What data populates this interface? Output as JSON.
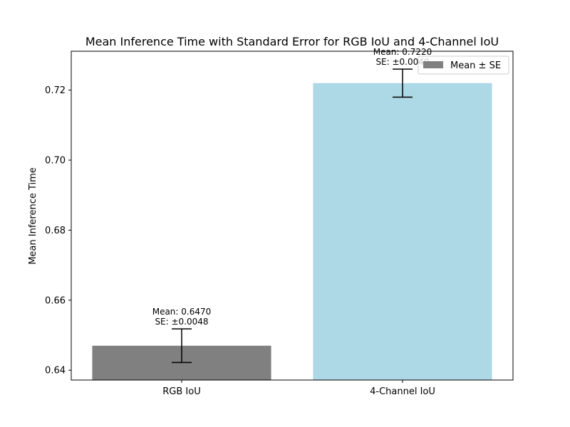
{
  "chart_data": {
    "type": "bar",
    "title": "Mean Inference Time with Standard Error for RGB IoU and 4-Channel IoU",
    "xlabel": "",
    "ylabel": "Mean Inference Time",
    "categories": [
      "RGB IoU",
      "4-Channel IoU"
    ],
    "values": [
      0.647,
      0.722
    ],
    "errors": [
      0.0048,
      0.004
    ],
    "bar_colors": [
      "#808080",
      "#add8e6"
    ],
    "data_labels": [
      {
        "mean": "Mean: 0.6470",
        "se": "SE: ±0.0048"
      },
      {
        "mean": "Mean: 0.7220",
        "se": "SE: ±0.0040"
      }
    ],
    "ylim": [
      0.6372,
      0.7311
    ],
    "yticks": [
      0.64,
      0.66,
      0.68,
      0.7,
      0.72
    ],
    "ytick_labels": [
      "0.64",
      "0.66",
      "0.68",
      "0.70",
      "0.72"
    ],
    "grid": false,
    "legend": {
      "position": "top-right",
      "entries": [
        {
          "label": "Mean ± SE",
          "color": "#808080"
        }
      ]
    }
  }
}
